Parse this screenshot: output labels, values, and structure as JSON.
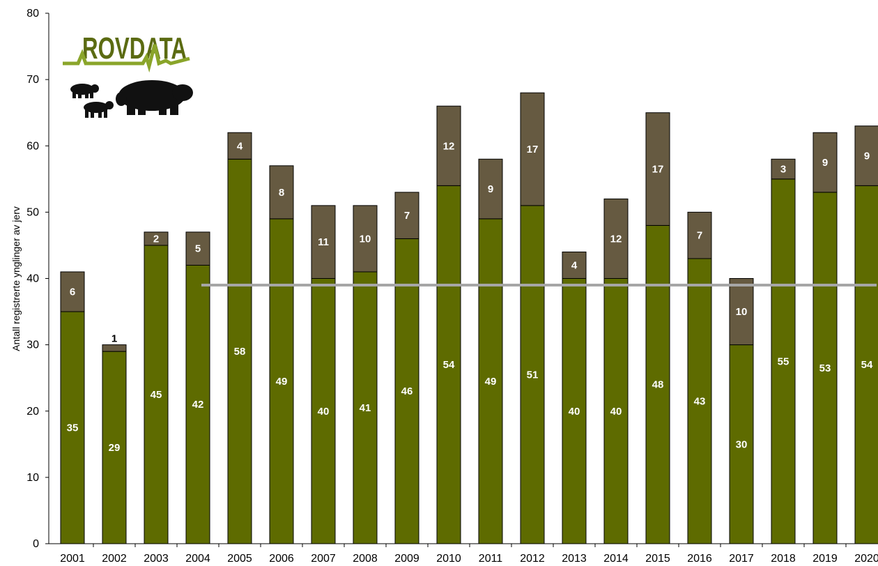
{
  "logo": {
    "text": "ROVDATA",
    "text_color": "#5b6b12",
    "accent_color": "#8aa52a",
    "animal_color": "#111111"
  },
  "colors": {
    "lower": "#5e6b00",
    "upper": "#665a41",
    "reference_line": "#a6a6a6",
    "label_light": "#ffffff",
    "label_dark": "#000000"
  },
  "chart_data": {
    "type": "bar",
    "stacked": true,
    "categories": [
      "2001",
      "2002",
      "2003",
      "2004",
      "2005",
      "2006",
      "2007",
      "2008",
      "2009",
      "2010",
      "2011",
      "2012",
      "2013",
      "2014",
      "2015",
      "2016",
      "2017",
      "2018",
      "2019",
      "2020"
    ],
    "series": [
      {
        "values": [
          35,
          29,
          45,
          42,
          58,
          49,
          40,
          41,
          46,
          54,
          49,
          51,
          40,
          40,
          48,
          43,
          30,
          55,
          53,
          54
        ],
        "color": "#5e6b00"
      },
      {
        "values": [
          6,
          1,
          2,
          5,
          4,
          8,
          11,
          10,
          7,
          12,
          9,
          17,
          4,
          12,
          17,
          7,
          10,
          3,
          9,
          9
        ],
        "color": "#665a41"
      }
    ],
    "reference_line": {
      "value": 39,
      "from_category": "2004"
    },
    "ylabel": "Antall registrerte ynglinger av jerv",
    "xlabel": "",
    "ylim": [
      0,
      80
    ],
    "yticks": [
      0,
      10,
      20,
      30,
      40,
      50,
      60,
      70,
      80
    ],
    "grid": false,
    "data_labels": true
  }
}
